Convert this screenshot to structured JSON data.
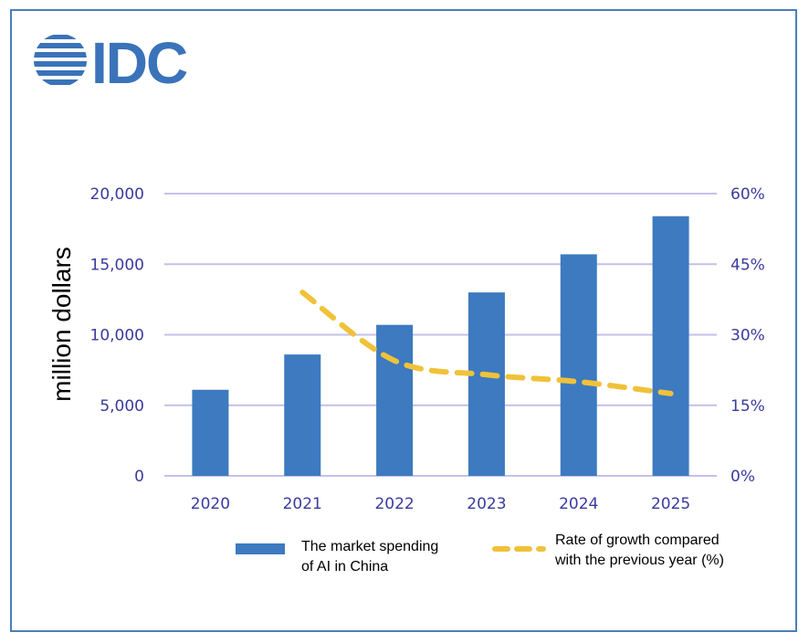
{
  "logo": {
    "text": "IDC",
    "icon": "globe-stripes-icon",
    "color": "#3a73b9"
  },
  "chart_data": {
    "type": "bar",
    "categories": [
      "2020",
      "2021",
      "2022",
      "2023",
      "2024",
      "2025"
    ],
    "ylabel": "million dollars",
    "ylim": [
      0,
      20000
    ],
    "y_ticks": [
      "0",
      "5,000",
      "10,000",
      "15,000",
      "20,000"
    ],
    "y2lim": [
      0,
      60
    ],
    "y2_ticks": [
      "0%",
      "15%",
      "30%",
      "45%",
      "60%"
    ],
    "grid": true,
    "legend_position": "bottom",
    "series": [
      {
        "name": "The market spending of AI in China",
        "name_lines": [
          "The market spending",
          "of AI in China"
        ],
        "type": "bar",
        "axis": "left",
        "color": "#3d7abf",
        "values": [
          6100,
          8600,
          10700,
          13000,
          15700,
          18400
        ]
      },
      {
        "name": "Rate of growth compared with the previous year (%)",
        "name_lines": [
          "Rate of growth compared",
          "with the previous year (%)"
        ],
        "type": "line",
        "style": "dashed",
        "axis": "right",
        "color": "#f0c23a",
        "values": [
          null,
          39,
          24.5,
          21.5,
          20,
          17.5
        ]
      }
    ]
  }
}
